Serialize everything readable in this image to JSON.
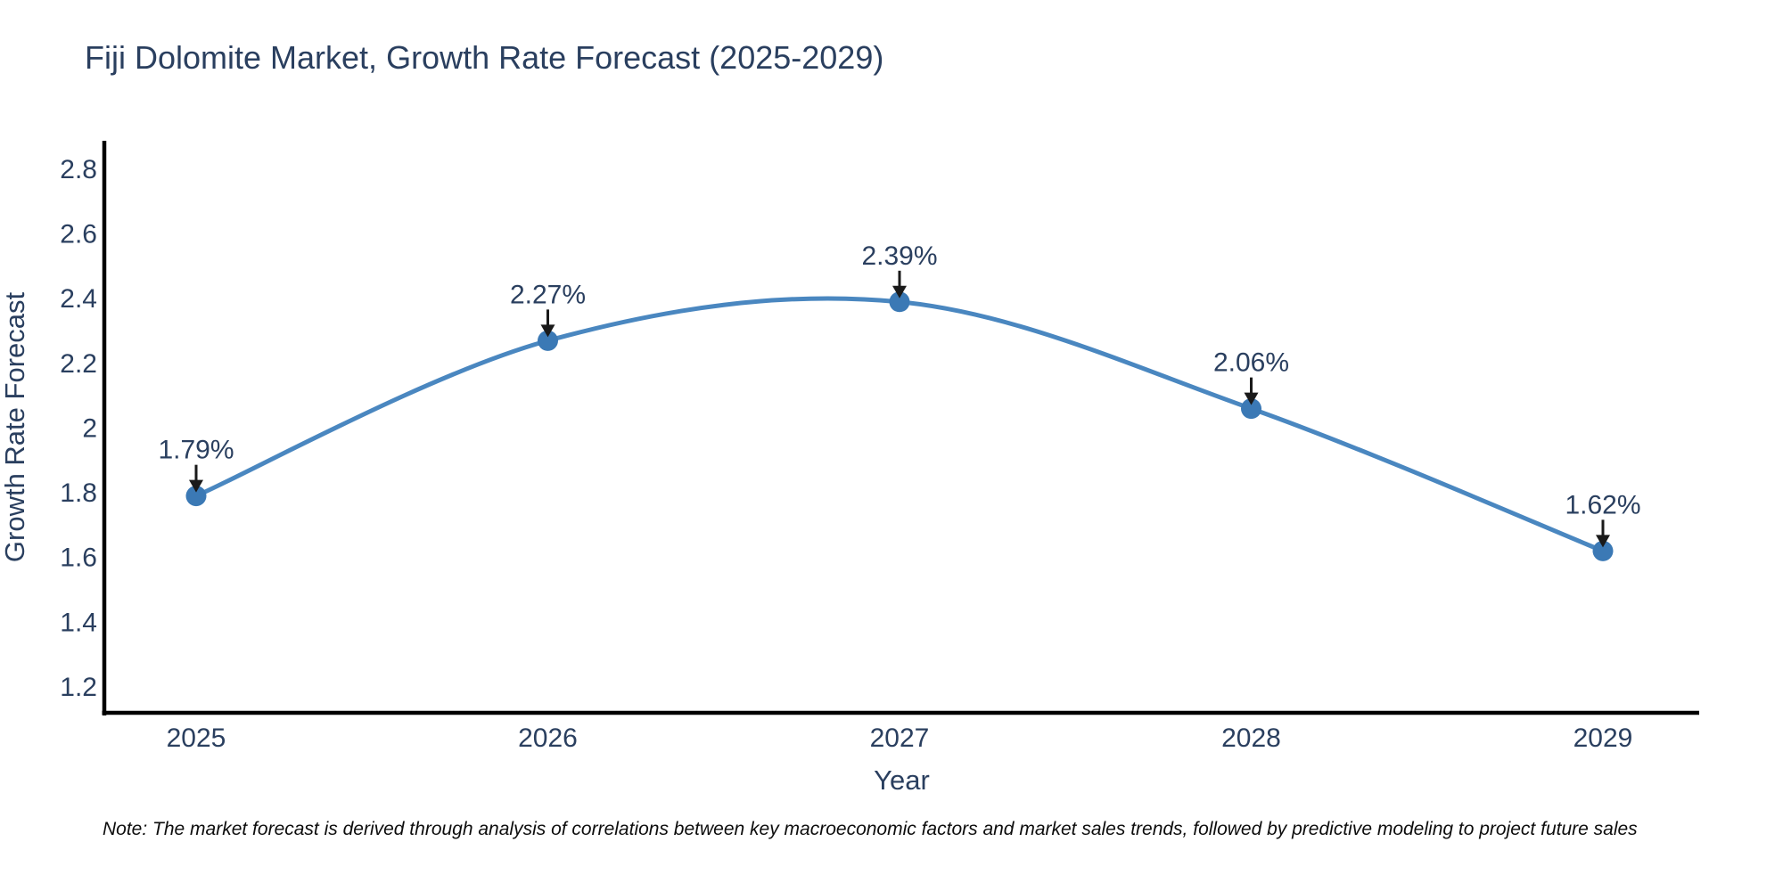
{
  "chart_data": {
    "type": "line",
    "title": "Fiji Dolomite Market, Growth Rate Forecast (2025-2029)",
    "note": "Note: The market forecast is derived through analysis of correlations between key macroeconomic factors and market sales trends, followed by predictive modeling to project future sales",
    "xlabel": "Year",
    "ylabel": "Growth Rate Forecast",
    "x": [
      2025,
      2026,
      2027,
      2028,
      2029
    ],
    "series": [
      {
        "name": "Growth Rate Forecast",
        "values": [
          1.79,
          2.27,
          2.39,
          2.06,
          1.62
        ]
      }
    ],
    "point_labels": [
      "1.79%",
      "2.27%",
      "2.39%",
      "2.06%",
      "1.62%"
    ],
    "y_ticks": [
      1.2,
      1.4,
      1.6,
      1.8,
      2,
      2.2,
      2.4,
      2.6,
      2.8
    ],
    "ylim": [
      1.117,
      2.888
    ],
    "line_shape": "spline",
    "grid": false,
    "legend": "none",
    "colors": {
      "line": "#4a87c0",
      "marker": "#3b79b5",
      "arrow": "#1a1a1a",
      "text": "#2a3f5f",
      "axis": "#000000"
    }
  }
}
